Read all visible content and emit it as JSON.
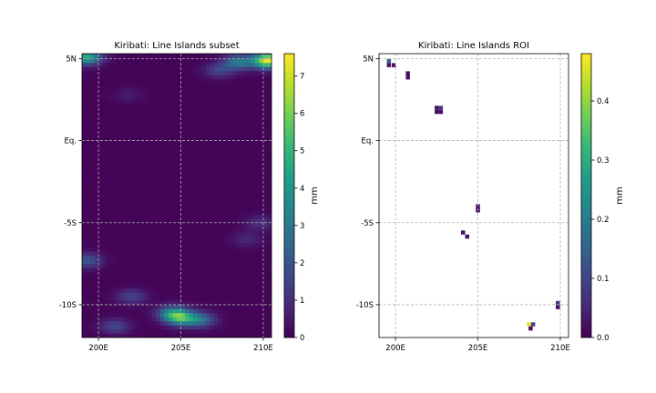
{
  "figure": {
    "left_panel": {
      "title": "Kiribati: Line Islands subset",
      "x_tick_labels": [
        "200E",
        "205E",
        "210E"
      ],
      "y_tick_labels": [
        "5N",
        "Eq.",
        "-5S",
        "-10S"
      ],
      "colorbar": {
        "label": "mm",
        "ticks": [
          "0",
          "1",
          "2",
          "3",
          "4",
          "5",
          "6",
          "7"
        ]
      }
    },
    "right_panel": {
      "title": "Kiribati: Line Islands ROI",
      "x_tick_labels": [
        "200E",
        "205E",
        "210E"
      ],
      "y_tick_labels": [
        "5N",
        "Eq.",
        "-5S",
        "-10S"
      ],
      "colorbar": {
        "label": "mm",
        "ticks": [
          "0.0",
          "0.1",
          "0.2",
          "0.3",
          "0.4"
        ]
      }
    }
  },
  "chart_data": [
    {
      "type": "heatmap",
      "title": "Kiribati: Line Islands subset",
      "colormap": "viridis",
      "xlim": [
        199.0,
        210.5
      ],
      "ylim": [
        -12.0,
        5.3
      ],
      "x_ticks": [
        200,
        205,
        210
      ],
      "y_ticks": [
        5,
        0,
        -5,
        -10
      ],
      "grid": true,
      "colorbar": {
        "label": "mm",
        "range": [
          0,
          7.6
        ]
      },
      "grid_resolution_deg": 0.25,
      "notable_cells": [
        {
          "lon": 199.3,
          "lat": 5.1,
          "value": 4.5
        },
        {
          "lon": 210.3,
          "lat": 4.9,
          "value": 7.4
        },
        {
          "lon": 208.5,
          "lat": 4.8,
          "value": 3.0
        },
        {
          "lon": 207.3,
          "lat": 4.3,
          "value": 1.5
        },
        {
          "lon": 201.8,
          "lat": 2.8,
          "value": 0.5
        },
        {
          "lon": 209.8,
          "lat": -5.0,
          "value": 1.0
        },
        {
          "lon": 209.0,
          "lat": -6.0,
          "value": 0.8
        },
        {
          "lon": 199.3,
          "lat": -7.3,
          "value": 2.0
        },
        {
          "lon": 202.0,
          "lat": -9.5,
          "value": 1.5
        },
        {
          "lon": 205.0,
          "lat": -10.8,
          "value": 4.2
        },
        {
          "lon": 204.5,
          "lat": -10.5,
          "value": 3.2
        },
        {
          "lon": 206.2,
          "lat": -10.9,
          "value": 2.6
        },
        {
          "lon": 201.0,
          "lat": -11.3,
          "value": 1.6
        }
      ]
    },
    {
      "type": "heatmap",
      "title": "Kiribati: Line Islands ROI",
      "colormap": "viridis",
      "xlim": [
        199.0,
        210.5
      ],
      "ylim": [
        -12.0,
        5.3
      ],
      "x_ticks": [
        200,
        205,
        210
      ],
      "y_ticks": [
        5,
        0,
        -5,
        -10
      ],
      "grid": true,
      "colorbar": {
        "label": "mm",
        "range": [
          0,
          0.48
        ]
      },
      "background": "masked (white)",
      "cells": [
        {
          "lon": 199.6,
          "lat": 4.85,
          "value": 0.15
        },
        {
          "lon": 199.6,
          "lat": 4.6,
          "value": 0.02
        },
        {
          "lon": 199.9,
          "lat": 4.6,
          "value": 0.02
        },
        {
          "lon": 200.75,
          "lat": 4.1,
          "value": 0.02
        },
        {
          "lon": 200.75,
          "lat": 3.85,
          "value": 0.02
        },
        {
          "lon": 202.5,
          "lat": 2.0,
          "value": 0.02
        },
        {
          "lon": 202.75,
          "lat": 2.0,
          "value": 0.08
        },
        {
          "lon": 202.5,
          "lat": 1.75,
          "value": 0.02
        },
        {
          "lon": 202.75,
          "lat": 1.75,
          "value": 0.02
        },
        {
          "lon": 205.0,
          "lat": -4.0,
          "value": 0.02
        },
        {
          "lon": 205.0,
          "lat": -4.25,
          "value": 0.02
        },
        {
          "lon": 204.1,
          "lat": -5.6,
          "value": 0.02
        },
        {
          "lon": 204.35,
          "lat": -5.85,
          "value": 0.02
        },
        {
          "lon": 208.1,
          "lat": -11.2,
          "value": 0.46
        },
        {
          "lon": 208.35,
          "lat": -11.2,
          "value": 0.1
        },
        {
          "lon": 208.2,
          "lat": -11.45,
          "value": 0.02
        },
        {
          "lon": 209.85,
          "lat": -9.9,
          "value": 0.08
        },
        {
          "lon": 209.85,
          "lat": -10.15,
          "value": 0.02
        }
      ]
    }
  ]
}
